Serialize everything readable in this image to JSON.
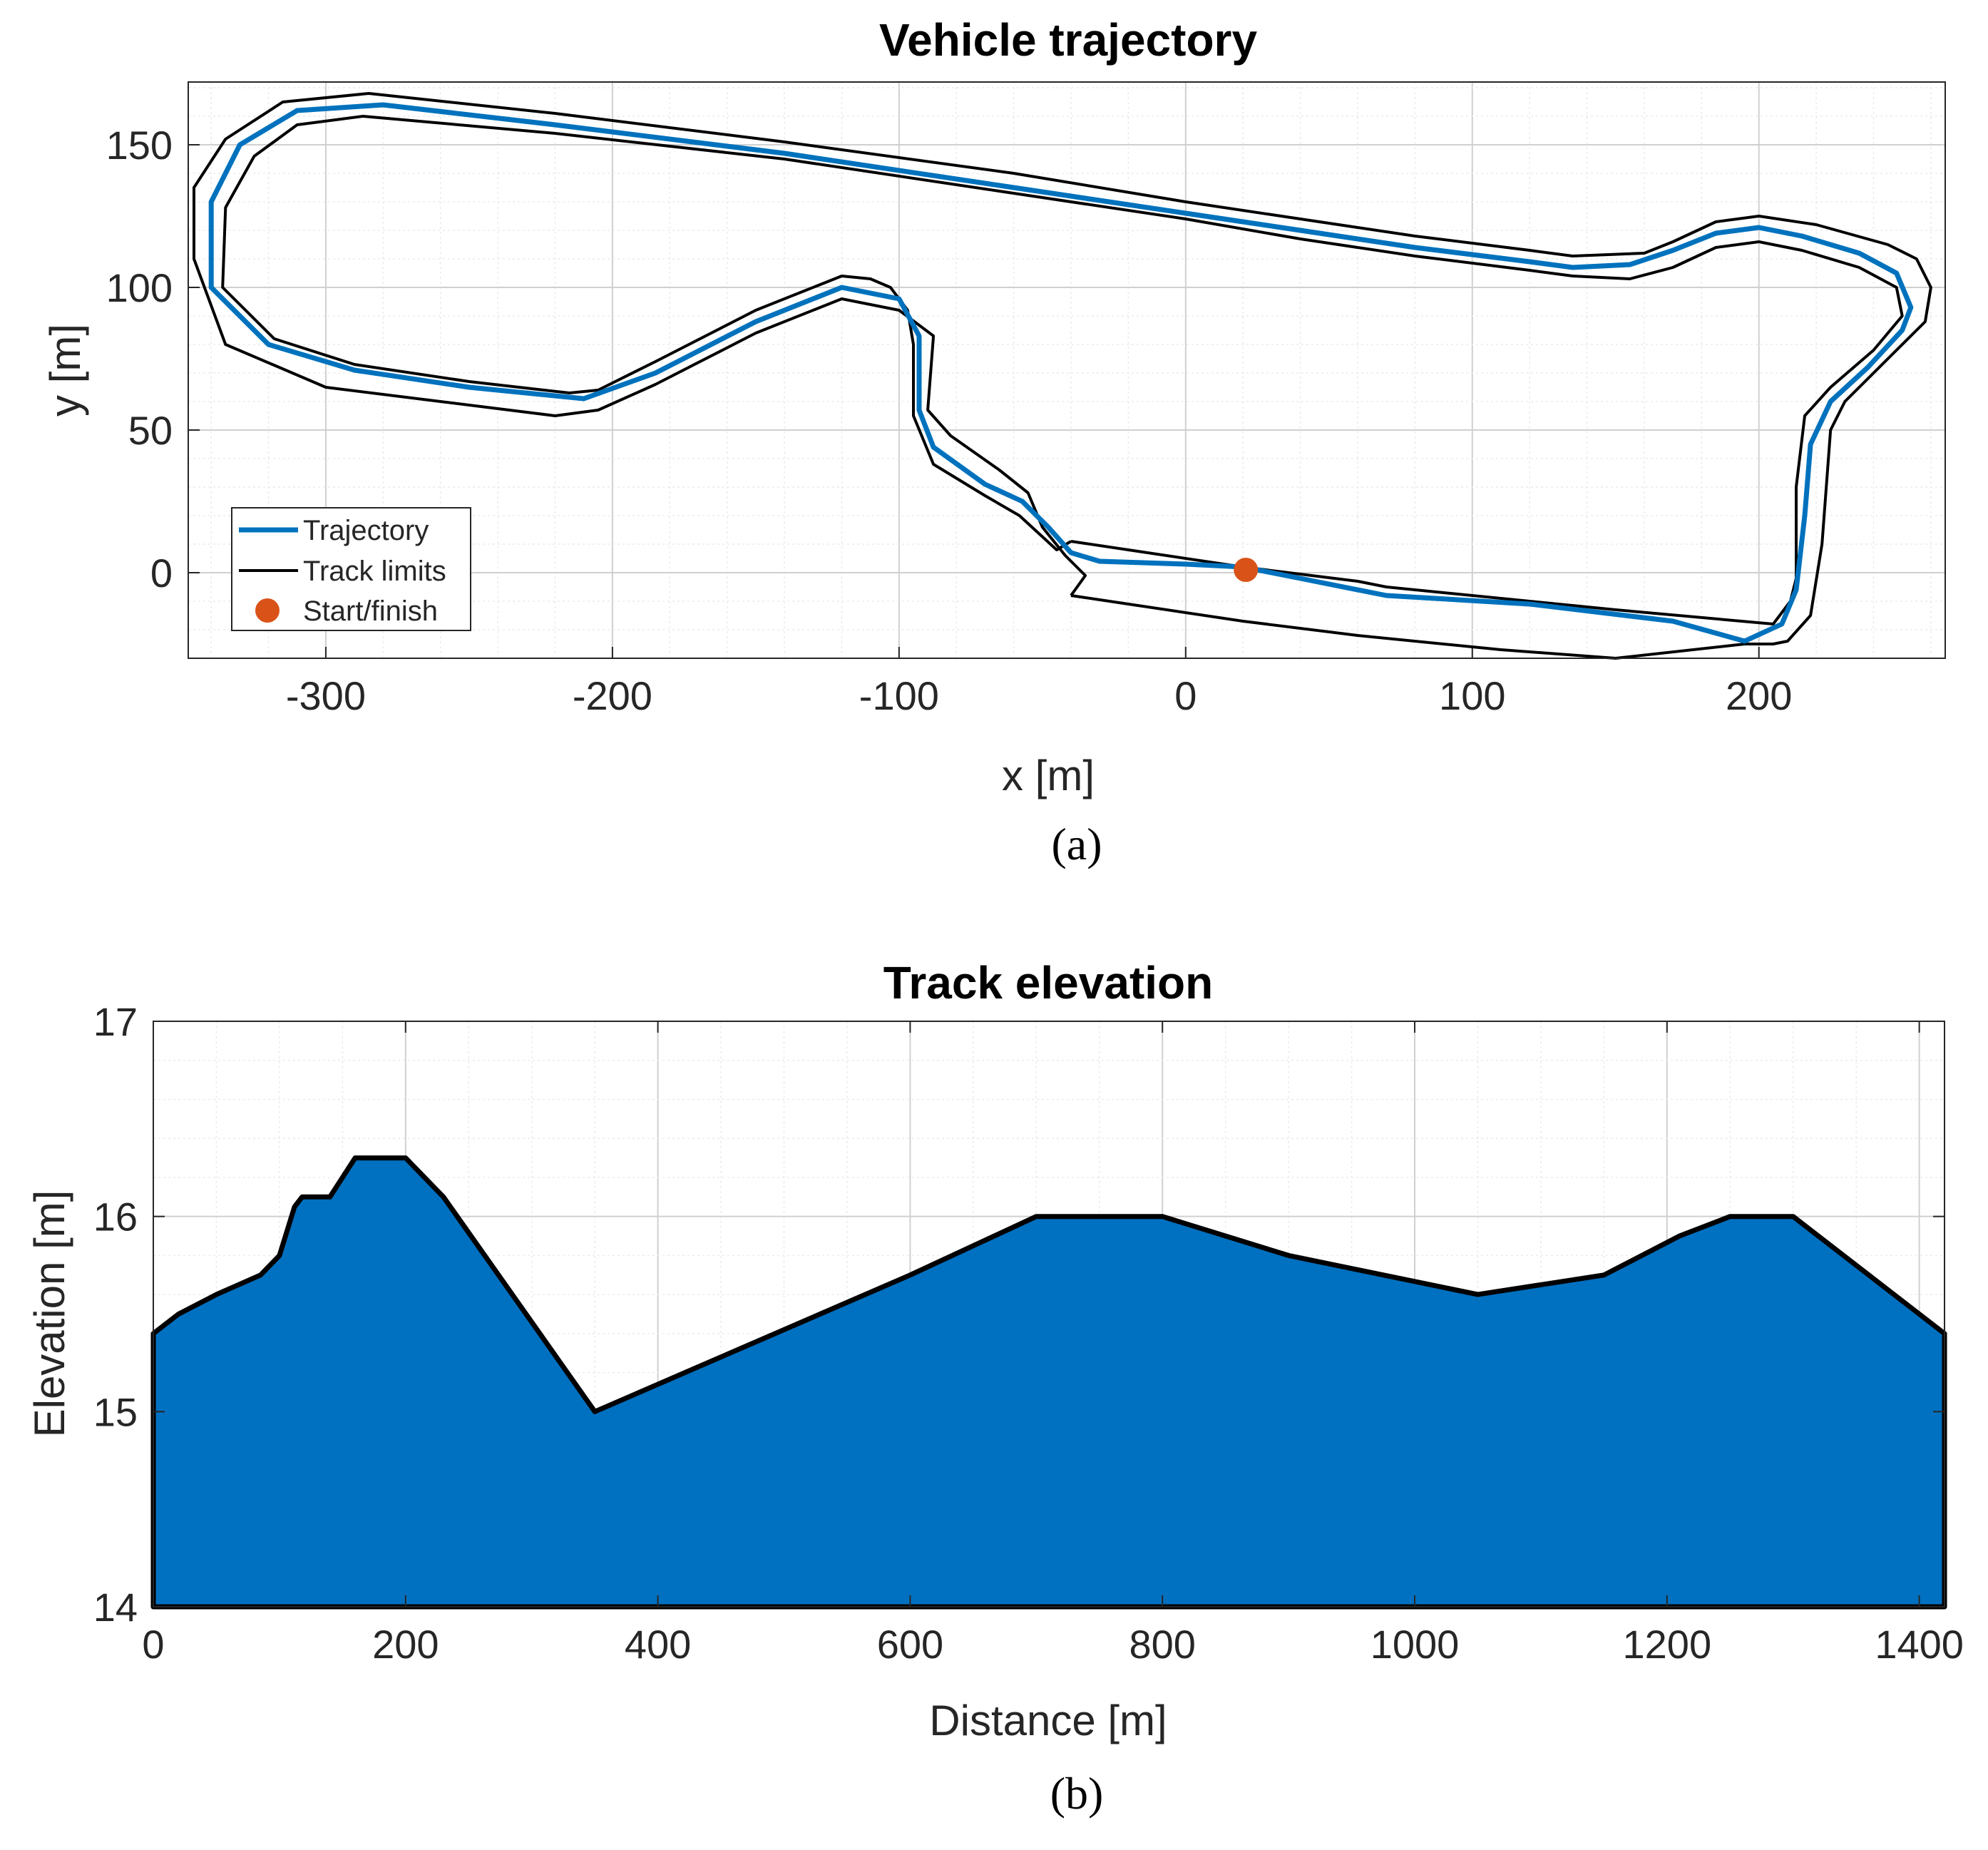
{
  "chart_data": [
    {
      "type": "line",
      "title": "Vehicle trajectory",
      "xlabel": "x [m]",
      "ylabel": "y [m]",
      "xlim": [
        -348,
        265
      ],
      "ylim": [
        -30,
        172
      ],
      "xticks": [
        -300,
        -200,
        -100,
        0,
        100,
        200
      ],
      "yticks": [
        0,
        50,
        100,
        150
      ],
      "grid": true,
      "caption": "(a)",
      "legend": {
        "placement": "bottom-left",
        "entries": [
          "Trajectory",
          "Track limits",
          "Start/finish"
        ]
      },
      "colors": {
        "trajectory": "#0072BD",
        "limits": "#000000",
        "start": "#D95319"
      },
      "series": [
        {
          "name": "Trajectory",
          "points": [
            [
              20,
              2
            ],
            [
              40,
              -2
            ],
            [
              70,
              -8
            ],
            [
              120,
              -11
            ],
            [
              170,
              -17
            ],
            [
              195,
              -24
            ],
            [
              208,
              -18
            ],
            [
              213,
              -6
            ],
            [
              216,
              20
            ],
            [
              218,
              45
            ],
            [
              225,
              60
            ],
            [
              238,
              72
            ],
            [
              250,
              85
            ],
            [
              253,
              93
            ],
            [
              248,
              105
            ],
            [
              235,
              112
            ],
            [
              215,
              118
            ],
            [
              200,
              121
            ],
            [
              185,
              119
            ],
            [
              170,
              113
            ],
            [
              155,
              108
            ],
            [
              135,
              107
            ],
            [
              120,
              109
            ],
            [
              80,
              114
            ],
            [
              40,
              120
            ],
            [
              0,
              126
            ],
            [
              -60,
              135
            ],
            [
              -140,
              147
            ],
            [
              -220,
              157
            ],
            [
              -280,
              164
            ],
            [
              -310,
              162
            ],
            [
              -330,
              150
            ],
            [
              -340,
              130
            ],
            [
              -340,
              100
            ],
            [
              -320,
              80
            ],
            [
              -290,
              71
            ],
            [
              -250,
              65
            ],
            [
              -210,
              61
            ],
            [
              -185,
              70
            ],
            [
              -150,
              88
            ],
            [
              -120,
              100
            ],
            [
              -100,
              96
            ],
            [
              -93,
              83
            ],
            [
              -93,
              57
            ],
            [
              -88,
              44
            ],
            [
              -70,
              31
            ],
            [
              -57,
              25
            ],
            [
              -48,
              16
            ],
            [
              -40,
              7
            ],
            [
              -30,
              4
            ],
            [
              0,
              3
            ],
            [
              20,
              2
            ]
          ]
        },
        {
          "name": "Track limits",
          "points": [
            [
              -40,
              11
            ],
            [
              -20,
              8
            ],
            [
              20,
              2
            ],
            [
              60,
              -3
            ],
            [
              70,
              -5
            ],
            [
              120,
              -10
            ],
            [
              150,
              -13
            ],
            [
              205,
              -18
            ],
            [
              211,
              -10
            ],
            [
              213,
              -2
            ],
            [
              213,
              30
            ],
            [
              216,
              55
            ],
            [
              225,
              65
            ],
            [
              240,
              78
            ],
            [
              250,
              90
            ],
            [
              248,
              100
            ],
            [
              235,
              107
            ],
            [
              215,
              113
            ],
            [
              200,
              116
            ],
            [
              185,
              114
            ],
            [
              170,
              107
            ],
            [
              155,
              103
            ],
            [
              135,
              104
            ],
            [
              120,
              106
            ],
            [
              80,
              111
            ],
            [
              40,
              117
            ],
            [
              0,
              124
            ],
            [
              -60,
              133
            ],
            [
              -140,
              145
            ],
            [
              -220,
              154
            ],
            [
              -287,
              160
            ],
            [
              -310,
              157
            ],
            [
              -325,
              146
            ],
            [
              -335,
              128
            ],
            [
              -336,
              100
            ],
            [
              -318,
              82
            ],
            [
              -290,
              73
            ],
            [
              -250,
              67
            ],
            [
              -215,
              63
            ],
            [
              -205,
              64
            ],
            [
              -185,
              74
            ],
            [
              -150,
              92
            ],
            [
              -120,
              104
            ],
            [
              -110,
              103
            ],
            [
              -103,
              100
            ],
            [
              -97,
              92
            ],
            [
              -95,
              80
            ],
            [
              -95,
              55
            ],
            [
              -88,
              38
            ],
            [
              -70,
              27
            ],
            [
              -58,
              20
            ],
            [
              -45,
              8
            ],
            [
              -40,
              11
            ]
          ]
        },
        {
          "name": "Track limits",
          "points": [
            [
              -40,
              -8
            ],
            [
              -20,
              -11
            ],
            [
              20,
              -17
            ],
            [
              60,
              -22
            ],
            [
              110,
              -27
            ],
            [
              150,
              -30
            ],
            [
              195,
              -25
            ],
            [
              205,
              -25
            ],
            [
              210,
              -24
            ],
            [
              218,
              -15
            ],
            [
              222,
              10
            ],
            [
              225,
              50
            ],
            [
              230,
              60
            ],
            [
              245,
              75
            ],
            [
              258,
              88
            ],
            [
              260,
              100
            ],
            [
              255,
              110
            ],
            [
              245,
              115
            ],
            [
              220,
              122
            ],
            [
              200,
              125
            ],
            [
              185,
              123
            ],
            [
              170,
              116
            ],
            [
              160,
              112
            ],
            [
              135,
              111
            ],
            [
              120,
              113
            ],
            [
              80,
              118
            ],
            [
              40,
              124
            ],
            [
              0,
              130
            ],
            [
              -60,
              140
            ],
            [
              -140,
              151
            ],
            [
              -220,
              161
            ],
            [
              -285,
              168
            ],
            [
              -315,
              165
            ],
            [
              -335,
              152
            ],
            [
              -346,
              135
            ],
            [
              -346,
              110
            ],
            [
              -335,
              80
            ],
            [
              -300,
              65
            ],
            [
              -260,
              60
            ],
            [
              -220,
              55
            ],
            [
              -205,
              57
            ],
            [
              -185,
              66
            ],
            [
              -150,
              84
            ],
            [
              -120,
              96
            ],
            [
              -100,
              92
            ],
            [
              -88,
              83
            ],
            [
              -90,
              57
            ],
            [
              -82,
              48
            ],
            [
              -65,
              36
            ],
            [
              -55,
              28
            ],
            [
              -50,
              16
            ],
            [
              -42,
              6
            ],
            [
              -35,
              -1
            ],
            [
              -40,
              -8
            ]
          ]
        },
        {
          "name": "Start/finish",
          "points": [
            [
              21,
              1
            ]
          ]
        }
      ]
    },
    {
      "type": "area",
      "title": "Track elevation",
      "xlabel": "Distance [m]",
      "ylabel": "Elevation [m]",
      "xlim": [
        0,
        1420
      ],
      "ylim": [
        14,
        17
      ],
      "xticks": [
        0,
        200,
        400,
        600,
        800,
        1000,
        1200,
        1400
      ],
      "yticks": [
        14,
        15,
        16,
        17
      ],
      "grid": true,
      "caption": "(b)",
      "colors": {
        "fill": "#0070C0",
        "edge": "#000000"
      },
      "x": [
        0,
        20,
        50,
        85,
        100,
        112,
        118,
        140,
        160,
        200,
        230,
        350,
        600,
        700,
        800,
        900,
        1050,
        1150,
        1210,
        1250,
        1300,
        1420
      ],
      "values": [
        15.4,
        15.5,
        15.6,
        15.7,
        15.8,
        16.05,
        16.1,
        16.1,
        16.3,
        16.3,
        16.1,
        15.0,
        15.7,
        16.0,
        16.0,
        15.8,
        15.6,
        15.7,
        15.9,
        16.0,
        16.0,
        15.4
      ]
    }
  ]
}
